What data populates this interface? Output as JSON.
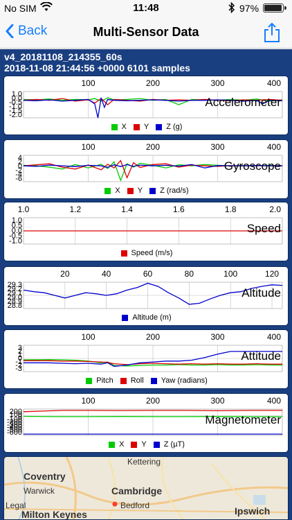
{
  "status": {
    "carrier": "No SIM",
    "time": "11:48",
    "battery_pct": "97%",
    "battery_level": 0.97
  },
  "nav": {
    "back_label": "Back",
    "title": "Multi-Sensor Data"
  },
  "session": {
    "file_name": "v4_20181108_214355_60s",
    "info": "2018-11-08 21:44:56 +0000 6101 samples"
  },
  "colors": {
    "x": "#00cc00",
    "y": "#dd0000",
    "z": "#0000cc",
    "panel_border": "#0b2a5a",
    "background": "#1a3f80"
  },
  "chart_data": [
    {
      "type": "line",
      "title": "Accelerometer",
      "xticks": [
        "100",
        "200",
        "300",
        "400"
      ],
      "xlim": [
        0,
        400
      ],
      "ytick_labels": [
        "1.0",
        "0.0",
        "-0.5",
        "-1.0",
        "-1.5",
        "-2.0"
      ],
      "ylim": [
        -2.0,
        1.0
      ],
      "legend": [
        {
          "label": "X",
          "color": "#00cc00"
        },
        {
          "label": "Y",
          "color": "#dd0000"
        },
        {
          "label": "Z (g)",
          "color": "#0000cc"
        }
      ],
      "series": [
        {
          "color": "#00cc00",
          "x": [
            0,
            20,
            40,
            60,
            80,
            100,
            110,
            120,
            130,
            140,
            160,
            180,
            200,
            220,
            240,
            260,
            280,
            300,
            320,
            340,
            360,
            380,
            400
          ],
          "y": [
            0.1,
            0.05,
            0.15,
            0.0,
            0.1,
            0.05,
            0.2,
            -0.1,
            0.3,
            0.05,
            0.1,
            0.2,
            0.0,
            0.1,
            -0.5,
            0.1,
            0.05,
            0.0,
            0.1,
            0.0,
            0.15,
            -0.1,
            0.05
          ]
        },
        {
          "color": "#dd0000",
          "x": [
            0,
            20,
            40,
            60,
            80,
            100,
            110,
            120,
            130,
            140,
            160,
            180,
            200,
            220,
            240,
            260,
            280,
            300,
            320,
            340,
            360,
            380,
            400
          ],
          "y": [
            0.0,
            0.1,
            0.0,
            0.2,
            -0.1,
            0.05,
            -0.3,
            0.2,
            -0.5,
            0.1,
            0.0,
            -0.1,
            0.1,
            0.0,
            0.05,
            0.0,
            0.1,
            0.0,
            -0.05,
            0.05,
            0.0,
            0.1,
            0.0
          ]
        },
        {
          "color": "#0000cc",
          "x": [
            0,
            20,
            40,
            60,
            80,
            100,
            110,
            115,
            120,
            125,
            130,
            140,
            160,
            180,
            200,
            220,
            240,
            260,
            280,
            300,
            320,
            340,
            360,
            370,
            380,
            400
          ],
          "y": [
            0.0,
            -0.05,
            0.05,
            -0.1,
            0.0,
            0.1,
            -0.4,
            -2.0,
            0.3,
            -0.8,
            0.1,
            0.0,
            -0.05,
            0.0,
            0.05,
            0.0,
            -0.1,
            0.0,
            0.0,
            0.05,
            0.0,
            -0.1,
            0.0,
            -0.4,
            0.0,
            -0.05
          ]
        }
      ]
    },
    {
      "type": "line",
      "title": "Gyroscope",
      "xticks": [
        "100",
        "200",
        "300",
        "400"
      ],
      "xlim": [
        0,
        400
      ],
      "ytick_labels": [
        "4",
        "2",
        "0",
        "-2",
        "-4",
        "-6"
      ],
      "ylim": [
        -6,
        4
      ],
      "legend": [
        {
          "label": "X",
          "color": "#00cc00"
        },
        {
          "label": "Y",
          "color": "#dd0000"
        },
        {
          "label": "Z (rad/s)",
          "color": "#0000cc"
        }
      ],
      "series": [
        {
          "color": "#00cc00",
          "x": [
            0,
            20,
            40,
            60,
            80,
            100,
            120,
            130,
            140,
            150,
            160,
            170,
            180,
            200,
            220,
            240,
            260,
            280,
            300,
            320,
            340,
            360,
            380,
            400
          ],
          "y": [
            0.2,
            0.0,
            -0.5,
            -1.2,
            0.5,
            -0.8,
            0.6,
            -1.0,
            1.5,
            -5.5,
            0.8,
            -0.5,
            1.0,
            0.2,
            -0.8,
            0.4,
            0.0,
            0.5,
            0.2,
            0.0,
            0.1,
            0.0,
            0.2,
            0.0
          ]
        },
        {
          "color": "#dd0000",
          "x": [
            0,
            20,
            40,
            60,
            80,
            100,
            120,
            130,
            140,
            150,
            160,
            170,
            180,
            200,
            220,
            240,
            260,
            280,
            300,
            320,
            340,
            360,
            380,
            400
          ],
          "y": [
            0.0,
            0.4,
            0.8,
            -0.5,
            -1.2,
            0.3,
            -1.5,
            0.6,
            -0.8,
            2.0,
            -4.5,
            1.2,
            -0.6,
            0.5,
            0.8,
            -0.5,
            0.3,
            0.0,
            -0.2,
            0.1,
            0.0,
            0.1,
            0.0,
            0.1
          ]
        },
        {
          "color": "#0000cc",
          "x": [
            0,
            20,
            40,
            60,
            80,
            100,
            120,
            130,
            140,
            150,
            160,
            170,
            180,
            200,
            220,
            240,
            260,
            280,
            300,
            320,
            340,
            360,
            380,
            400
          ],
          "y": [
            0.0,
            -0.2,
            0.3,
            0.0,
            -0.3,
            0.2,
            0.0,
            -0.6,
            0.4,
            -0.3,
            0.5,
            -0.2,
            0.3,
            0.0,
            0.2,
            -0.1,
            0.5,
            -0.8,
            0.1,
            0.0,
            0.0,
            0.1,
            0.0,
            0.0
          ]
        }
      ]
    },
    {
      "type": "line",
      "title": "Speed",
      "xticks": [
        "1.0",
        "1.2",
        "1.4",
        "1.6",
        "1.8",
        "2.0"
      ],
      "xlim": [
        1.0,
        2.0
      ],
      "ytick_labels": [
        "1.0",
        "0.5",
        "0.0",
        "-0.5",
        "-1.0"
      ],
      "ylim": [
        -1.0,
        1.0
      ],
      "legend": [
        {
          "label": "Speed (m/s)",
          "color": "#dd0000"
        }
      ],
      "series": [
        {
          "color": "#dd0000",
          "x": [
            1.0,
            2.0
          ],
          "y": [
            0.0,
            0.0
          ]
        }
      ]
    },
    {
      "type": "line",
      "title": "Altitude",
      "xticks": [
        "20",
        "40",
        "60",
        "80",
        "100",
        "120"
      ],
      "xlim": [
        0,
        125
      ],
      "ytick_labels": [
        "29.3",
        "29.2",
        "29.1",
        "29.0",
        "28.9",
        "28.8"
      ],
      "ylim": [
        28.8,
        29.3
      ],
      "legend": [
        {
          "label": "Altitude (m)",
          "color": "#0000cc"
        }
      ],
      "series": [
        {
          "color": "#0000cc",
          "x": [
            0,
            5,
            10,
            15,
            20,
            25,
            30,
            35,
            40,
            45,
            50,
            55,
            60,
            65,
            70,
            75,
            80,
            85,
            90,
            95,
            100,
            105,
            110,
            115,
            120,
            125
          ],
          "y": [
            29.15,
            29.12,
            29.1,
            29.05,
            29.0,
            29.05,
            29.1,
            29.08,
            29.05,
            29.08,
            29.15,
            29.2,
            29.28,
            29.22,
            29.1,
            29.0,
            28.88,
            28.9,
            28.98,
            29.05,
            29.1,
            29.12,
            29.18,
            29.22,
            29.25,
            29.24
          ]
        }
      ]
    },
    {
      "type": "line",
      "title": "Attitude",
      "xticks": [
        "100",
        "200",
        "300",
        "400"
      ],
      "xlim": [
        0,
        400
      ],
      "ytick_labels": [
        "3",
        "2",
        "1",
        "0",
        "-1",
        "-2",
        "-3"
      ],
      "ylim": [
        -3,
        3
      ],
      "legend": [
        {
          "label": "Pitch",
          "color": "#00cc00"
        },
        {
          "label": "Roll",
          "color": "#dd0000"
        },
        {
          "label": "Yaw (radians)",
          "color": "#0000cc"
        }
      ],
      "series": [
        {
          "color": "#00cc00",
          "x": [
            0,
            20,
            40,
            60,
            80,
            100,
            120,
            130,
            140,
            160,
            180,
            200,
            220,
            240,
            260,
            280,
            300,
            320,
            340,
            360,
            380,
            400
          ],
          "y": [
            -0.3,
            -0.3,
            -0.25,
            -0.3,
            -0.4,
            -0.6,
            -1.0,
            -0.8,
            -1.6,
            -1.7,
            -1.6,
            -1.5,
            -1.5,
            -1.4,
            -1.5,
            -1.5,
            -1.4,
            -1.5,
            -1.5,
            -1.4,
            -1.5,
            -1.5
          ]
        },
        {
          "color": "#dd0000",
          "x": [
            0,
            20,
            40,
            60,
            80,
            100,
            120,
            130,
            140,
            160,
            180,
            200,
            220,
            240,
            260,
            280,
            300,
            320,
            340,
            360,
            380,
            400
          ],
          "y": [
            -0.5,
            -0.5,
            -0.5,
            -0.6,
            -0.6,
            -0.7,
            -0.8,
            -0.9,
            -1.2,
            -1.4,
            -1.2,
            -1.1,
            -1.2,
            -1.3,
            -1.2,
            -1.3,
            -1.2,
            -1.3,
            -1.3,
            -1.2,
            -1.3,
            -1.3
          ]
        },
        {
          "color": "#0000cc",
          "x": [
            0,
            20,
            40,
            60,
            80,
            100,
            120,
            130,
            140,
            160,
            180,
            200,
            220,
            240,
            260,
            280,
            300,
            320,
            340,
            360,
            380,
            400
          ],
          "y": [
            -1.0,
            -1.0,
            -1.0,
            -1.1,
            -1.2,
            -1.1,
            -1.3,
            -1.0,
            -1.8,
            -1.5,
            -1.0,
            -0.8,
            -0.6,
            -0.6,
            -0.4,
            0.2,
            1.0,
            1.6,
            1.6,
            1.6,
            1.6,
            1.6
          ]
        }
      ]
    },
    {
      "type": "line",
      "title": "Magnetometer",
      "xticks": [
        "100",
        "200",
        "300",
        "400"
      ],
      "xlim": [
        0,
        400
      ],
      "ytick_labels": [
        "200",
        "100",
        "0",
        "-100",
        "-200",
        "-300",
        "-400",
        "-500",
        "-600"
      ],
      "ylim": [
        -600,
        200
      ],
      "legend": [
        {
          "label": "X",
          "color": "#00cc00"
        },
        {
          "label": "Y",
          "color": "#dd0000"
        },
        {
          "label": "Z (µT)",
          "color": "#0000cc"
        }
      ],
      "series": [
        {
          "color": "#00cc00",
          "x": [
            0,
            50,
            100,
            150,
            200,
            250,
            300,
            350,
            400
          ],
          "y": [
            -20,
            -30,
            -30,
            -25,
            -30,
            -30,
            -25,
            -30,
            -30
          ]
        },
        {
          "color": "#dd0000",
          "x": [
            0,
            30,
            60,
            100,
            150,
            200,
            250,
            300,
            350,
            400
          ],
          "y": [
            120,
            140,
            160,
            160,
            155,
            160,
            160,
            150,
            160,
            160
          ]
        },
        {
          "color": "#0000cc",
          "x": [
            0,
            50,
            100,
            150,
            200,
            250,
            300,
            350,
            400
          ],
          "y": [
            -560,
            -560,
            -560,
            -560,
            -560,
            -560,
            -560,
            -560,
            -560
          ]
        }
      ]
    }
  ],
  "map": {
    "labels": [
      {
        "text": "Kettering",
        "big": false
      },
      {
        "text": "Coventry",
        "big": true
      },
      {
        "text": "Warwick",
        "big": false
      },
      {
        "text": "Cambridge",
        "big": true
      },
      {
        "text": "Bedford",
        "big": false
      },
      {
        "text": "Legal",
        "big": false
      },
      {
        "text": "Milton Keynes",
        "big": true
      },
      {
        "text": "Ipswich",
        "big": true
      }
    ]
  }
}
